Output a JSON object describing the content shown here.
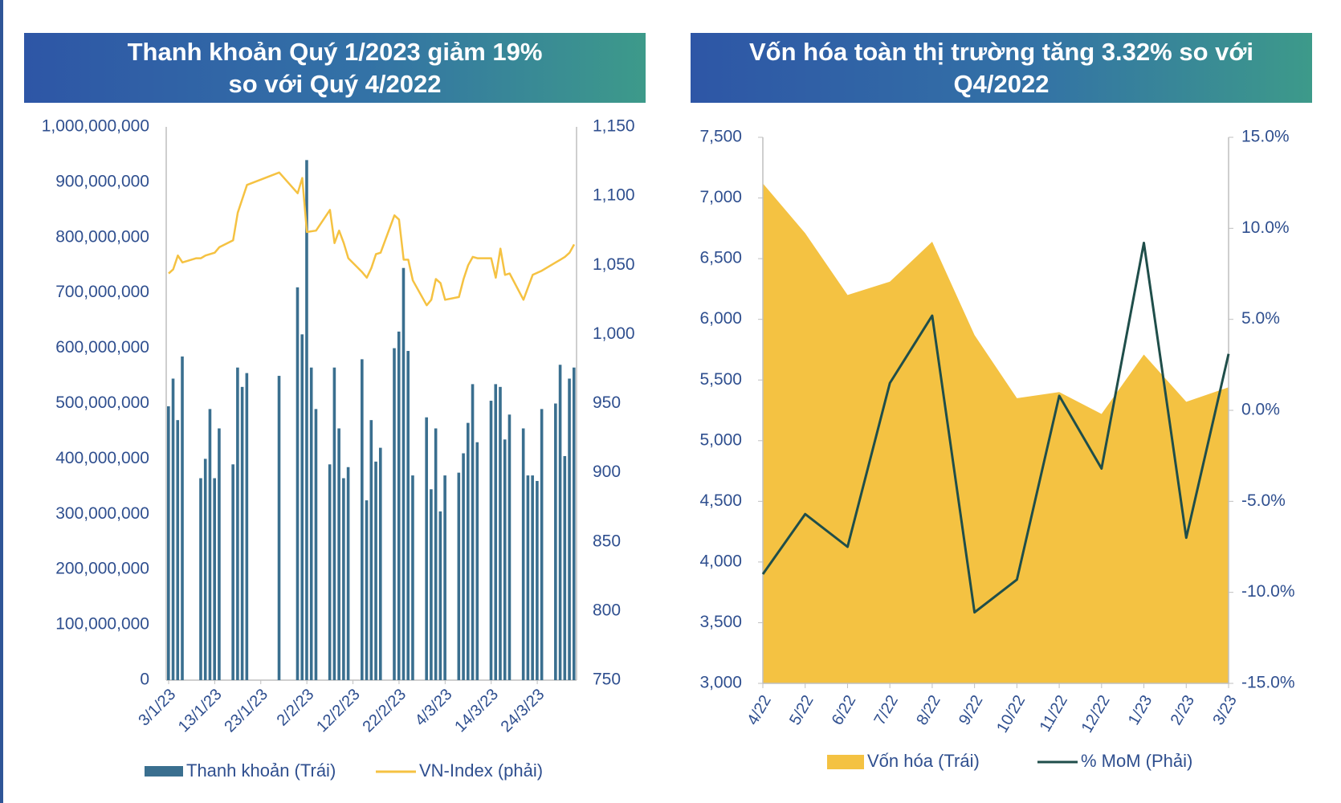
{
  "left_panel": {
    "title_line1": "Thanh khoản Quý 1/2023 giảm 19%",
    "title_line2": "so với Quý 4/2022"
  },
  "right_panel": {
    "title_line1": "Vốn hóa toàn thị trường tăng 3.32% so với",
    "title_line2": "Q4/2022"
  },
  "colors": {
    "bar": "#3a6f8f",
    "vnindex_line": "#f5c242",
    "area": "#f4c242",
    "mom_line": "#1f4e4a",
    "axis_text": "#2f4f8f"
  },
  "chart_data": [
    {
      "type": "bar",
      "title": "Thanh khoản Quý 1/2023 giảm 19% so với Quý 4/2022",
      "ylim": [
        0,
        1000000000
      ],
      "y2lim": [
        750,
        1150
      ],
      "y_ticks": [
        "0",
        "100,000,000",
        "200,000,000",
        "300,000,000",
        "400,000,000",
        "500,000,000",
        "600,000,000",
        "700,000,000",
        "800,000,000",
        "900,000,000",
        "1,000,000,000"
      ],
      "y2_ticks": [
        "750",
        "800",
        "850",
        "900",
        "950",
        "1,000",
        "1,050",
        "1,100",
        "1,150"
      ],
      "x_tick_labels": [
        "3/1/23",
        "13/1/23",
        "23/1/23",
        "2/2/23",
        "12/2/23",
        "22/2/23",
        "4/3/23",
        "14/3/23",
        "24/3/23"
      ],
      "legend": [
        "Thanh khoản (Trái)",
        "VN-Index (phải)"
      ],
      "days": 88,
      "series": [
        {
          "name": "Thanh khoản (Trái)",
          "type": "bar",
          "points": [
            [
              0,
              495000000
            ],
            [
              1,
              545000000
            ],
            [
              2,
              470000000
            ],
            [
              3,
              585000000
            ],
            [
              7,
              365000000
            ],
            [
              8,
              400000000
            ],
            [
              9,
              490000000
            ],
            [
              10,
              365000000
            ],
            [
              11,
              455000000
            ],
            [
              14,
              390000000
            ],
            [
              15,
              565000000
            ],
            [
              16,
              530000000
            ],
            [
              17,
              555000000
            ],
            [
              24,
              550000000
            ],
            [
              28,
              710000000
            ],
            [
              29,
              625000000
            ],
            [
              30,
              940000000
            ],
            [
              31,
              565000000
            ],
            [
              32,
              490000000
            ],
            [
              35,
              390000000
            ],
            [
              36,
              565000000
            ],
            [
              37,
              455000000
            ],
            [
              38,
              365000000
            ],
            [
              39,
              385000000
            ],
            [
              42,
              580000000
            ],
            [
              43,
              325000000
            ],
            [
              44,
              470000000
            ],
            [
              45,
              395000000
            ],
            [
              46,
              420000000
            ],
            [
              49,
              600000000
            ],
            [
              50,
              630000000
            ],
            [
              51,
              745000000
            ],
            [
              52,
              595000000
            ],
            [
              53,
              370000000
            ],
            [
              56,
              475000000
            ],
            [
              57,
              345000000
            ],
            [
              58,
              455000000
            ],
            [
              59,
              305000000
            ],
            [
              60,
              370000000
            ],
            [
              63,
              375000000
            ],
            [
              64,
              410000000
            ],
            [
              65,
              465000000
            ],
            [
              66,
              535000000
            ],
            [
              67,
              430000000
            ],
            [
              70,
              505000000
            ],
            [
              71,
              535000000
            ],
            [
              72,
              530000000
            ],
            [
              73,
              435000000
            ],
            [
              74,
              480000000
            ],
            [
              77,
              455000000
            ],
            [
              78,
              370000000
            ],
            [
              79,
              370000000
            ],
            [
              80,
              360000000
            ],
            [
              81,
              490000000
            ],
            [
              84,
              500000000
            ],
            [
              85,
              570000000
            ],
            [
              86,
              405000000
            ],
            [
              87,
              545000000
            ],
            [
              88,
              565000000
            ]
          ]
        },
        {
          "name": "VN-Index (phải)",
          "type": "line",
          "points": [
            [
              0,
              1044
            ],
            [
              1,
              1047
            ],
            [
              2,
              1057
            ],
            [
              3,
              1052
            ],
            [
              6,
              1055
            ],
            [
              7,
              1055
            ],
            [
              8,
              1057
            ],
            [
              10,
              1059
            ],
            [
              11,
              1063
            ],
            [
              14,
              1068
            ],
            [
              15,
              1088
            ],
            [
              17,
              1108
            ],
            [
              24,
              1117
            ],
            [
              28,
              1102
            ],
            [
              29,
              1113
            ],
            [
              30,
              1074
            ],
            [
              32,
              1075
            ],
            [
              35,
              1090
            ],
            [
              36,
              1066
            ],
            [
              37,
              1075
            ],
            [
              38,
              1066
            ],
            [
              39,
              1055
            ],
            [
              42,
              1045
            ],
            [
              43,
              1041
            ],
            [
              44,
              1048
            ],
            [
              45,
              1058
            ],
            [
              46,
              1059
            ],
            [
              49,
              1086
            ],
            [
              50,
              1083
            ],
            [
              51,
              1054
            ],
            [
              52,
              1054
            ],
            [
              53,
              1039
            ],
            [
              56,
              1021
            ],
            [
              57,
              1025
            ],
            [
              58,
              1040
            ],
            [
              59,
              1037
            ],
            [
              60,
              1025
            ],
            [
              63,
              1027
            ],
            [
              64,
              1040
            ],
            [
              65,
              1050
            ],
            [
              66,
              1056
            ],
            [
              67,
              1055
            ],
            [
              70,
              1055
            ],
            [
              71,
              1041
            ],
            [
              72,
              1062
            ],
            [
              73,
              1043
            ],
            [
              74,
              1044
            ],
            [
              77,
              1025
            ],
            [
              78,
              1034
            ],
            [
              79,
              1043
            ],
            [
              81,
              1046
            ],
            [
              84,
              1052
            ],
            [
              85,
              1054
            ],
            [
              86,
              1056
            ],
            [
              87,
              1059
            ],
            [
              88,
              1065
            ]
          ]
        }
      ]
    },
    {
      "type": "area",
      "title": "Vốn hóa toàn thị trường tăng 3.32% so với Q4/2022",
      "categories": [
        "4/22",
        "5/22",
        "6/22",
        "7/22",
        "8/22",
        "9/22",
        "10/22",
        "11/22",
        "12/22",
        "1/23",
        "2/23",
        "3/23"
      ],
      "ylim": [
        3000,
        7500
      ],
      "y2lim": [
        -15,
        15
      ],
      "y_ticks": [
        "3,000",
        "3,500",
        "4,000",
        "4,500",
        "5,000",
        "5,500",
        "6,000",
        "6,500",
        "7,000",
        "7,500"
      ],
      "y2_ticks": [
        "-15.0%",
        "-10.0%",
        "-5.0%",
        "0.0%",
        "5.0%",
        "10.0%",
        "15.0%"
      ],
      "legend": [
        "Vốn hóa (Trái)",
        "% MoM (Phải)"
      ],
      "series": [
        {
          "name": "Vốn hóa (Trái)",
          "type": "area",
          "values": [
            7120,
            6710,
            6200,
            6310,
            6640,
            5870,
            5350,
            5400,
            5220,
            5710,
            5320,
            5440
          ]
        },
        {
          "name": "% MoM (Phải)",
          "type": "line",
          "values": [
            -9.0,
            -5.7,
            -7.5,
            1.5,
            5.2,
            -11.1,
            -9.3,
            0.8,
            -3.2,
            9.2,
            -7.0,
            3.1
          ]
        }
      ]
    }
  ]
}
